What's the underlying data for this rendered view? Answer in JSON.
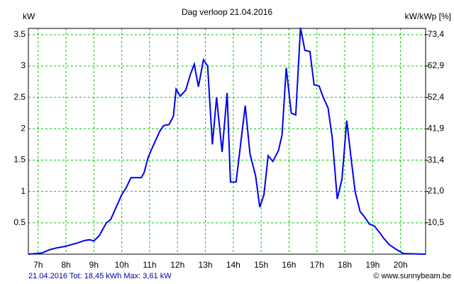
{
  "chart_data": {
    "type": "line",
    "title": "Dag  verloop 21.04.2016",
    "ylabel": "kW",
    "y2label": "kW/kWp [%]",
    "footer": "21.04.2016 Tot: 18,45 kWh Max: 3,61 kW",
    "credit": "© www.sunnybeam.be",
    "x": [
      6.65,
      7.15,
      7.4,
      7.66,
      7.92,
      8.17,
      8.42,
      8.68,
      8.85,
      9.0,
      9.2,
      9.45,
      9.6,
      9.8,
      10.0,
      10.15,
      10.33,
      10.6,
      10.7,
      10.8,
      10.95,
      11.15,
      11.35,
      11.5,
      11.7,
      11.85,
      11.95,
      12.1,
      12.3,
      12.45,
      12.6,
      12.75,
      12.93,
      13.08,
      13.25,
      13.4,
      13.6,
      13.78,
      13.9,
      14.1,
      14.43,
      14.6,
      14.8,
      14.95,
      15.1,
      15.25,
      15.42,
      15.62,
      15.75,
      15.9,
      16.08,
      16.24,
      16.41,
      16.57,
      16.75,
      16.9,
      17.08,
      17.23,
      17.4,
      17.55,
      17.73,
      17.9,
      18.07,
      18.22,
      18.37,
      18.55,
      18.7,
      18.88,
      19.06,
      19.24,
      19.4,
      19.6,
      19.87,
      20.1,
      20.9
    ],
    "series": [
      {
        "name": "kW",
        "color": "#0000ee",
        "values": [
          0,
          0.02,
          0.07,
          0.1,
          0.12,
          0.15,
          0.18,
          0.22,
          0.23,
          0.21,
          0.3,
          0.5,
          0.55,
          0.75,
          0.95,
          1.05,
          1.22,
          1.22,
          1.22,
          1.3,
          1.55,
          1.75,
          1.95,
          2.05,
          2.07,
          2.2,
          2.63,
          2.52,
          2.62,
          2.85,
          3.03,
          2.67,
          3.1,
          3.0,
          1.75,
          2.5,
          1.63,
          2.57,
          1.15,
          1.15,
          2.37,
          1.6,
          1.25,
          0.75,
          0.95,
          1.57,
          1.48,
          1.65,
          1.9,
          2.97,
          2.25,
          2.22,
          3.61,
          3.25,
          3.23,
          2.7,
          2.68,
          2.5,
          2.33,
          1.85,
          0.88,
          1.2,
          2.13,
          1.55,
          1.0,
          0.68,
          0.6,
          0.48,
          0.45,
          0.35,
          0.25,
          0.15,
          0.07,
          0.01,
          0
        ]
      }
    ],
    "xlim": [
      6.65,
      20.9
    ],
    "xticks": [
      {
        "value": 7,
        "label": "7h"
      },
      {
        "value": 8,
        "label": "8h"
      },
      {
        "value": 9,
        "label": "9h"
      },
      {
        "value": 10,
        "label": "10h"
      },
      {
        "value": 11,
        "label": "11h"
      },
      {
        "value": 12,
        "label": "12h"
      },
      {
        "value": 13,
        "label": "13h"
      },
      {
        "value": 14,
        "label": "14h"
      },
      {
        "value": 15,
        "label": "15h"
      },
      {
        "value": 16,
        "label": "16h"
      },
      {
        "value": 17,
        "label": "17h"
      },
      {
        "value": 18,
        "label": "18h"
      },
      {
        "value": 19,
        "label": "19h"
      },
      {
        "value": 20,
        "label": "20h"
      }
    ],
    "ylim": [
      0,
      3.6
    ],
    "yticks": [
      0.5,
      1,
      1.5,
      2,
      2.5,
      3,
      3.5
    ],
    "y2lim": [
      0,
      75.5
    ],
    "y2ticks": [
      {
        "value": 10.5,
        "label": "10,5"
      },
      {
        "value": 21.0,
        "label": "21,0"
      },
      {
        "value": 31.4,
        "label": "31,4"
      },
      {
        "value": 41.9,
        "label": "41,9"
      },
      {
        "value": 52.4,
        "label": "52,4"
      },
      {
        "value": 62.9,
        "label": "62,9"
      },
      {
        "value": 73.4,
        "label": "73,4"
      }
    ],
    "grid": true,
    "grid_color": "#00cc00"
  }
}
